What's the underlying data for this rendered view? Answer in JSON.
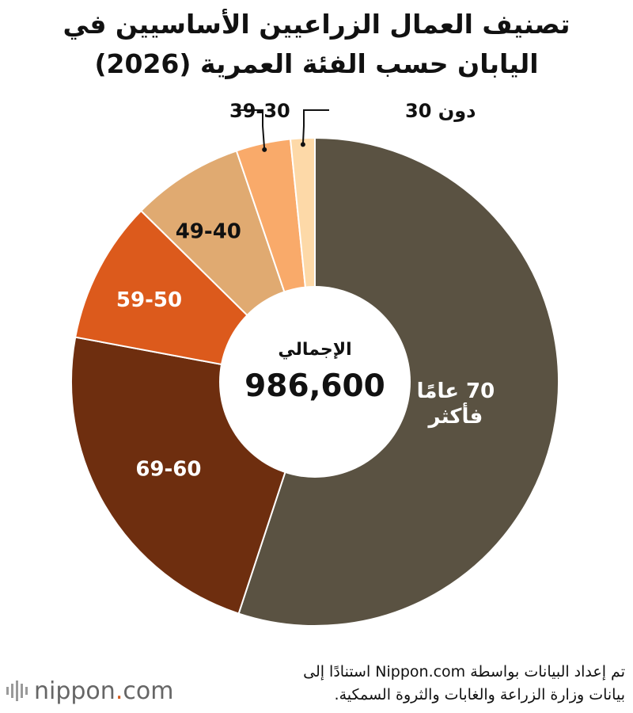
{
  "title": {
    "line1": "تصنيف العمال الزراعيين الأساسيين في",
    "line2": "اليابان حسب الفئة العمرية (2026)"
  },
  "chart_data": {
    "type": "pie",
    "title": "تصنيف العمال الزراعيين الأساسيين في اليابان حسب الفئة العمرية (2026)",
    "center_label": "الإجمالي",
    "center_value": "986,600",
    "slices": [
      {
        "label": "70 عامًا فأكثر",
        "label_lines": [
          "70 عامًا",
          "فأكثر"
        ],
        "value": 0.549,
        "color": "#5a5242",
        "text_color": "#ffffff"
      },
      {
        "label": "69-60",
        "label_lines": [
          "69-60"
        ],
        "value": 0.228,
        "color": "#6e2e0f",
        "text_color": "#ffffff"
      },
      {
        "label": "59-50",
        "label_lines": [
          "59-50"
        ],
        "value": 0.094,
        "color": "#dc5a1c",
        "text_color": "#ffffff"
      },
      {
        "label": "49-40",
        "label_lines": [
          "49-40"
        ],
        "value": 0.074,
        "color": "#e0aa71",
        "text_color": "#111111"
      },
      {
        "label": "39-30",
        "label_lines": [
          "39-30"
        ],
        "value": 0.036,
        "color": "#f9aa6a",
        "text_color": "#111111"
      },
      {
        "label": "دون 30",
        "label_lines": [
          "دون 30"
        ],
        "value": 0.016,
        "color": "#fdd9a8",
        "text_color": "#111111"
      }
    ]
  },
  "footer": {
    "note_line1": "تم إعداد البيانات بواسطة Nippon.com استنادًا إلى",
    "note_line2": "بيانات وزارة الزراعة والغابات والثروة السمكية.",
    "logo_main": "nippon",
    "logo_dot": ".",
    "logo_suffix": "com"
  }
}
